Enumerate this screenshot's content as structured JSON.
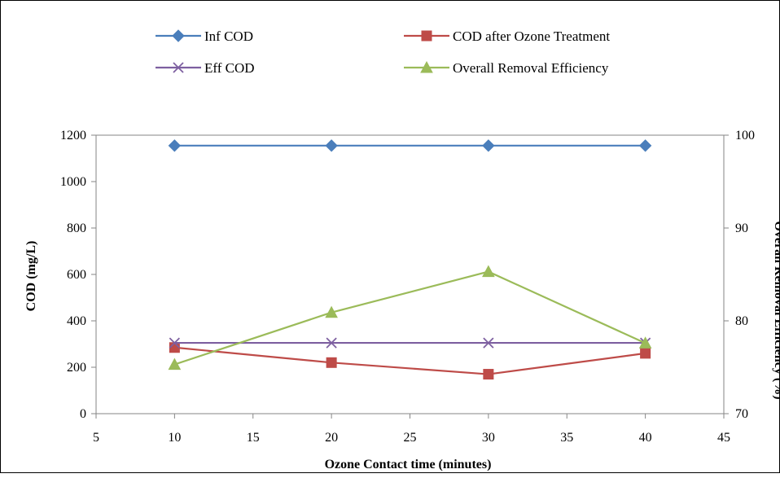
{
  "chart_data": {
    "type": "line",
    "title": "",
    "xlabel": "Ozone Contact time (minutes)",
    "ylabel": "COD (mg/L)",
    "y2label": "Overall Removal Efficiency (%)",
    "xlim": [
      5,
      45
    ],
    "ylim": [
      0,
      1200
    ],
    "y2lim": [
      70,
      100
    ],
    "x_ticks": [
      "5",
      "10",
      "15",
      "20",
      "25",
      "30",
      "35",
      "40",
      "45"
    ],
    "y_ticks": [
      "0",
      "200",
      "400",
      "600",
      "800",
      "1000",
      "1200"
    ],
    "y2_ticks": [
      "70",
      "80",
      "90",
      "100"
    ],
    "grid": false,
    "legend_position": "top",
    "x": [
      10,
      20,
      30,
      40
    ],
    "series": [
      {
        "name": "Inf COD",
        "axis": "left",
        "color": "#4a7ebb",
        "marker": "diamond",
        "values": [
          1155,
          1155,
          1155,
          1155
        ]
      },
      {
        "name": "COD after Ozone Treatment",
        "axis": "left",
        "color": "#be4b48",
        "marker": "square",
        "values": [
          285,
          220,
          170,
          260
        ]
      },
      {
        "name": "Eff COD",
        "axis": "left",
        "color": "#7d5fa0",
        "marker": "x",
        "values": [
          305,
          305,
          305,
          305
        ]
      },
      {
        "name": "Overall Removal Efficiency",
        "axis": "right",
        "color": "#9bbb59",
        "marker": "triangle",
        "values": [
          75.3,
          80.9,
          85.3,
          77.6
        ]
      }
    ]
  }
}
